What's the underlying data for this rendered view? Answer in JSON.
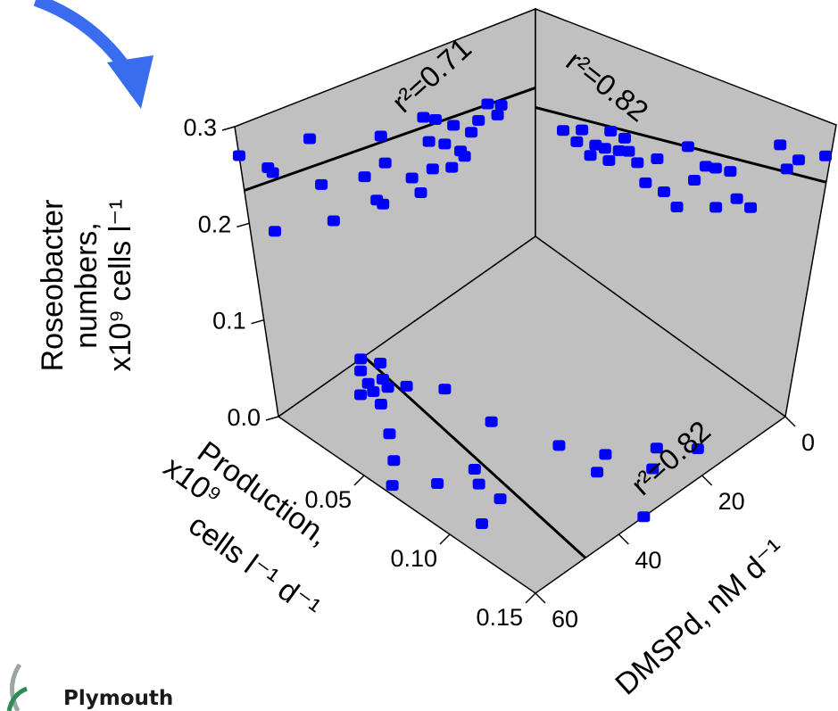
{
  "colors": {
    "panel": "#c0c0c0",
    "point": "#0000ff",
    "arrow": "#3a6cf0",
    "line": "#000000"
  },
  "logo_text": "Plymouth",
  "chart_data": {
    "type": "scatter",
    "title": "",
    "axes": {
      "y": {
        "label_lines": [
          "Roseobacter",
          "numbers,",
          "x10⁹ cells l⁻¹"
        ],
        "ticks": [
          "0.0",
          "0.1",
          "0.2",
          "0.3"
        ],
        "range": [
          0,
          0.3
        ]
      },
      "production": {
        "label_lines": [
          "Production,",
          "x10⁹",
          "cells l⁻¹ d⁻¹"
        ],
        "ticks": [
          "0.05",
          "0.10",
          "0.15"
        ],
        "range": [
          0,
          0.15
        ]
      },
      "dmspd": {
        "label": "DMSPd, nM d⁻¹",
        "ticks": [
          "0",
          "20",
          "40",
          "60"
        ],
        "range": [
          0,
          60
        ]
      }
    },
    "r2": {
      "roseobacter_vs_production": "r²=0.71",
      "roseobacter_vs_dmspd": "r²=0.82",
      "production_vs_dmspd": "r²=0.82"
    },
    "roseobacter_vs_production": [
      {
        "production": 0.15,
        "roseobacter": 0.27
      },
      {
        "production": 0.137,
        "roseobacter": 0.246
      },
      {
        "production": 0.135,
        "roseobacter": 0.239
      },
      {
        "production": 0.115,
        "roseobacter": 0.257
      },
      {
        "production": 0.138,
        "roseobacter": 0.18
      },
      {
        "production": 0.112,
        "roseobacter": 0.204
      },
      {
        "production": 0.108,
        "roseobacter": 0.16
      },
      {
        "production": 0.09,
        "roseobacter": 0.19
      },
      {
        "production": 0.085,
        "roseobacter": 0.158
      },
      {
        "production": 0.082,
        "roseobacter": 0.15
      },
      {
        "production": 0.08,
        "roseobacter": 0.226
      },
      {
        "production": 0.079,
        "roseobacter": 0.194
      },
      {
        "production": 0.066,
        "roseobacter": 0.162
      },
      {
        "production": 0.062,
        "roseobacter": 0.14
      },
      {
        "production": 0.058,
        "roseobacter": 0.225
      },
      {
        "production": 0.056,
        "roseobacter": 0.194
      },
      {
        "production": 0.055,
        "roseobacter": 0.16
      },
      {
        "production": 0.052,
        "roseobacter": 0.216
      },
      {
        "production": 0.048,
        "roseobacter": 0.182
      },
      {
        "production": 0.045,
        "roseobacter": 0.15
      },
      {
        "production": 0.043,
        "roseobacter": 0.199
      },
      {
        "production": 0.04,
        "roseobacter": 0.164
      },
      {
        "production": 0.038,
        "roseobacter": 0.155
      },
      {
        "production": 0.034,
        "roseobacter": 0.18
      },
      {
        "production": 0.03,
        "roseobacter": 0.19
      },
      {
        "production": 0.025,
        "roseobacter": 0.205
      },
      {
        "production": 0.02,
        "roseobacter": 0.185
      },
      {
        "production": 0.018,
        "roseobacter": 0.195
      }
    ],
    "roseobacter_vs_production_fit": [
      [
        0.15,
        0.234
      ],
      [
        0.0,
        0.196
      ]
    ],
    "roseobacter_vs_dmspd": [
      {
        "dmspd": 1,
        "roseobacter": 0.266
      },
      {
        "dmspd": 6,
        "roseobacter": 0.251
      },
      {
        "dmspd": 8,
        "roseobacter": 0.237
      },
      {
        "dmspd": 10,
        "roseobacter": 0.258
      },
      {
        "dmspd": 14,
        "roseobacter": 0.181
      },
      {
        "dmspd": 17,
        "roseobacter": 0.183
      },
      {
        "dmspd": 19,
        "roseobacter": 0.208
      },
      {
        "dmspd": 21,
        "roseobacter": 0.163
      },
      {
        "dmspd": 22,
        "roseobacter": 0.204
      },
      {
        "dmspd": 24,
        "roseobacter": 0.201
      },
      {
        "dmspd": 26,
        "roseobacter": 0.18
      },
      {
        "dmspd": 28,
        "roseobacter": 0.213
      },
      {
        "dmspd": 29,
        "roseobacter": 0.141
      },
      {
        "dmspd": 32,
        "roseobacter": 0.15
      },
      {
        "dmspd": 34,
        "roseobacter": 0.183
      },
      {
        "dmspd": 36,
        "roseobacter": 0.149
      },
      {
        "dmspd": 38,
        "roseobacter": 0.167
      },
      {
        "dmspd": 40,
        "roseobacter": 0.175
      },
      {
        "dmspd": 41,
        "roseobacter": 0.188
      },
      {
        "dmspd": 42,
        "roseobacter": 0.17
      },
      {
        "dmspd": 44,
        "roseobacter": 0.188
      },
      {
        "dmspd": 44,
        "roseobacter": 0.152
      },
      {
        "dmspd": 45,
        "roseobacter": 0.164
      },
      {
        "dmspd": 47,
        "roseobacter": 0.162
      },
      {
        "dmspd": 48,
        "roseobacter": 0.146
      },
      {
        "dmspd": 50,
        "roseobacter": 0.172
      },
      {
        "dmspd": 51,
        "roseobacter": 0.154
      },
      {
        "dmspd": 54,
        "roseobacter": 0.159
      }
    ],
    "roseobacter_vs_dmspd_fit": [
      [
        0,
        0.241
      ],
      [
        60,
        0.17
      ]
    ],
    "production_vs_dmspd": [
      {
        "dmspd": 0,
        "production": 0.102
      },
      {
        "dmspd": 2,
        "production": 0.107
      },
      {
        "dmspd": 3,
        "production": 0.098
      },
      {
        "dmspd": 5,
        "production": 0.11
      },
      {
        "dmspd": 6,
        "production": 0.117
      },
      {
        "dmspd": 6,
        "production": 0.104
      },
      {
        "dmspd": 7,
        "production": 0.112
      },
      {
        "dmspd": 8,
        "production": 0.106
      },
      {
        "dmspd": 10,
        "production": 0.1
      },
      {
        "dmspd": 10,
        "production": 0.115
      },
      {
        "dmspd": 15,
        "production": 0.09
      },
      {
        "dmspd": 16,
        "production": 0.125
      },
      {
        "dmspd": 21,
        "production": 0.135
      },
      {
        "dmspd": 25,
        "production": 0.146
      },
      {
        "dmspd": 26,
        "production": 0.09
      },
      {
        "dmspd": 30,
        "production": 0.132
      },
      {
        "dmspd": 32,
        "production": 0.115
      },
      {
        "dmspd": 35,
        "production": 0.12
      },
      {
        "dmspd": 38,
        "production": 0.08
      },
      {
        "dmspd": 40,
        "production": 0.12
      },
      {
        "dmspd": 42,
        "production": 0.136
      },
      {
        "dmspd": 45,
        "production": 0.07
      },
      {
        "dmspd": 47,
        "production": 0.08
      },
      {
        "dmspd": 50,
        "production": 0.052
      },
      {
        "dmspd": 53,
        "production": 0.062
      },
      {
        "dmspd": 55,
        "production": 0.04
      },
      {
        "dmspd": 60,
        "production": 0.085
      }
    ],
    "production_vs_dmspd_fit": [
      [
        0,
        0.1
      ],
      [
        60,
        0.12
      ]
    ]
  }
}
